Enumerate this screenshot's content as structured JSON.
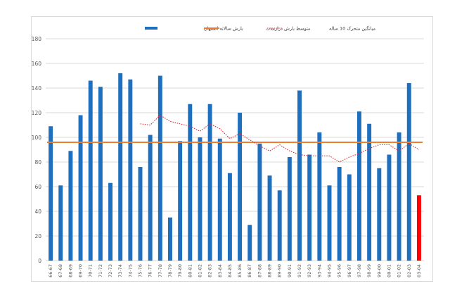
{
  "chart_data": {
    "type": "bar",
    "title": "",
    "xlabel": "",
    "ylabel": "",
    "ylim": [
      0,
      180
    ],
    "yticks": [
      0,
      20,
      40,
      60,
      80,
      100,
      120,
      140,
      160,
      180
    ],
    "grid": true,
    "legend_position": "top",
    "categories": [
      "66-67",
      "67-68",
      "68-69",
      "69-70",
      "70-71",
      "71-72",
      "72-73",
      "73-74",
      "74-75",
      "75-76",
      "76-77",
      "77-78",
      "78-79",
      "79-80",
      "80-81",
      "81-82",
      "82-83",
      "83-84",
      "84-85",
      "85-86",
      "86-87",
      "87-88",
      "88-89",
      "89-90",
      "90-91",
      "91-92",
      "92-93",
      "93-94",
      "94-95",
      "95-96",
      "96-97",
      "97-98",
      "98-99",
      "99-00",
      "00-01",
      "01-02",
      "02-03",
      "03-04"
    ],
    "series": [
      {
        "name": "بارش سالانه اصفهان",
        "kind": "bar",
        "color": "#1f6fbf",
        "values": [
          109,
          61,
          89,
          118,
          146,
          141,
          63,
          152,
          147,
          76,
          102,
          150,
          35,
          97,
          127,
          100,
          127,
          99,
          71,
          120,
          29,
          95,
          69,
          57,
          84,
          138,
          86,
          104,
          61,
          76,
          70,
          121,
          111,
          75,
          86,
          104,
          144,
          null
        ]
      },
      {
        "name": "متوسط بارش درازمدت",
        "kind": "line",
        "color": "#ed7d31",
        "values": [
          96,
          96,
          96,
          96,
          96,
          96,
          96,
          96,
          96,
          96,
          96,
          96,
          96,
          96,
          96,
          96,
          96,
          96,
          96,
          96,
          96,
          96,
          96,
          96,
          96,
          96,
          96,
          96,
          96,
          96,
          96,
          96,
          96,
          96,
          96,
          96,
          96,
          96
        ]
      },
      {
        "name": "میانگین متحرک 10 ساله",
        "kind": "dotted-line",
        "color": "#e03030",
        "values": [
          null,
          null,
          null,
          null,
          null,
          null,
          null,
          null,
          null,
          111,
          110,
          118,
          113,
          111,
          109,
          105,
          111,
          107,
          99,
          103,
          98,
          93,
          89,
          94,
          89,
          86,
          85,
          85,
          85,
          80,
          84,
          87,
          91,
          94,
          94,
          89,
          95,
          90
        ]
      },
      {
        "name": "",
        "kind": "bar",
        "color": "#ff0000",
        "values": [
          null,
          null,
          null,
          null,
          null,
          null,
          null,
          null,
          null,
          null,
          null,
          null,
          null,
          null,
          null,
          null,
          null,
          null,
          null,
          null,
          null,
          null,
          null,
          null,
          null,
          null,
          null,
          null,
          null,
          null,
          null,
          null,
          null,
          null,
          null,
          null,
          null,
          53
        ]
      }
    ]
  }
}
